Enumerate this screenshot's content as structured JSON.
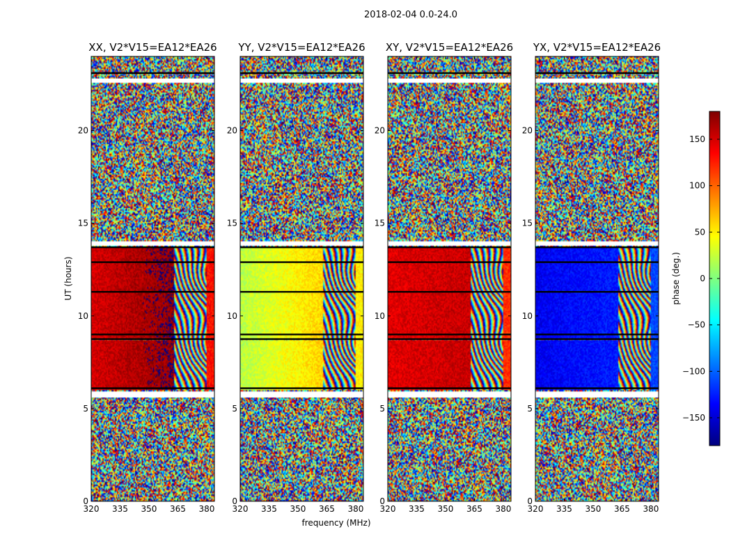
{
  "figure": {
    "suptitle": "2018-02-04 0.0-24.0"
  },
  "chart_data": {
    "type": "heatmap",
    "shared": {
      "xlabel": "frequency (MHz)",
      "ylabel": "UT (hours)",
      "xlim": [
        320,
        384
      ],
      "ylim": [
        0,
        24
      ],
      "xticks": [
        320,
        335,
        350,
        365,
        380
      ],
      "yticks": [
        0,
        5,
        10,
        15,
        20
      ],
      "colormap": "jet",
      "colorbar": {
        "label": "phase (deg.)",
        "range": [
          -180,
          180
        ],
        "ticks": [
          150,
          100,
          50,
          0,
          -50,
          -100,
          -150
        ],
        "tick_labels": [
          "150",
          "100",
          "50",
          "0",
          "−50",
          "−100",
          "−150"
        ]
      },
      "coherent_time_ranges_hours": [
        [
          6.0,
          8.7
        ],
        [
          8.8,
          12.9
        ],
        [
          12.9,
          13.7
        ]
      ],
      "flagged_time_ranges_hours": [
        [
          5.6,
          5.9
        ],
        [
          13.8,
          14.0
        ],
        [
          22.6,
          22.8
        ]
      ],
      "frequency_breakpoints_mhz": [
        363,
        380
      ]
    },
    "panels": [
      {
        "title": "XX, V2*V15=EA12*EA26",
        "low_band_phase_deg": 150,
        "low_band_phase_end_deg": 175,
        "top_band_phase_deg": 150,
        "top_band_phase_end_deg": 130
      },
      {
        "title": "YY, V2*V15=EA12*EA26",
        "low_band_phase_deg": 20,
        "low_band_phase_end_deg": 60,
        "top_band_phase_deg": 40,
        "top_band_phase_end_deg": 50
      },
      {
        "title": "XY, V2*V15=EA12*EA26",
        "low_band_phase_deg": 145,
        "low_band_phase_end_deg": 155,
        "top_band_phase_deg": 150,
        "top_band_phase_end_deg": 120
      },
      {
        "title": "YX, V2*V15=EA12*EA26",
        "low_band_phase_deg": -140,
        "low_band_phase_end_deg": -125,
        "top_band_phase_deg": -130,
        "top_band_phase_end_deg": -110
      }
    ]
  }
}
